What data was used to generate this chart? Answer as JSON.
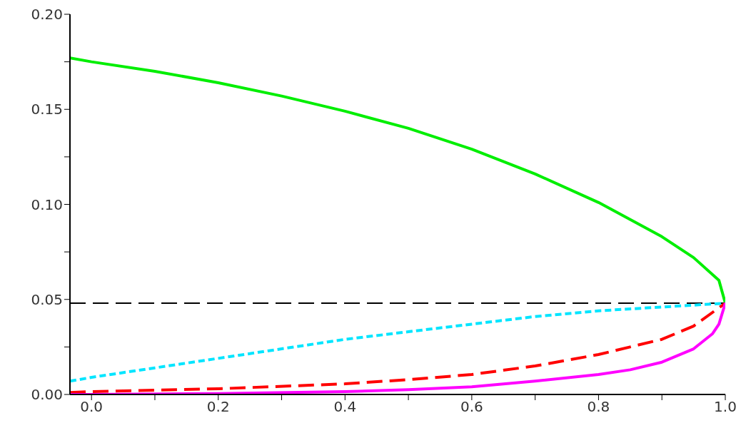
{
  "chart_data": {
    "type": "line",
    "xlim": [
      -0.034,
      1.0
    ],
    "ylim": [
      0,
      0.2
    ],
    "xticks": [
      {
        "value": 0,
        "label": "0.0"
      },
      {
        "value": 0.1,
        "label": null
      },
      {
        "value": 0.2,
        "label": "0.2"
      },
      {
        "value": 0.3,
        "label": null
      },
      {
        "value": 0.4,
        "label": "0.4"
      },
      {
        "value": 0.5,
        "label": null
      },
      {
        "value": 0.6,
        "label": "0.6"
      },
      {
        "value": 0.7,
        "label": null
      },
      {
        "value": 0.8,
        "label": "0.8"
      },
      {
        "value": 0.9,
        "label": null
      },
      {
        "value": 1.0,
        "label": "1.0"
      }
    ],
    "yticks": [
      {
        "value": 0,
        "label": "0.00"
      },
      {
        "value": 0.025,
        "label": null
      },
      {
        "value": 0.05,
        "label": "0.05"
      },
      {
        "value": 0.075,
        "label": null
      },
      {
        "value": 0.1,
        "label": "0.10"
      },
      {
        "value": 0.125,
        "label": null
      },
      {
        "value": 0.15,
        "label": "0.15"
      },
      {
        "value": 0.175,
        "label": null
      },
      {
        "value": 0.2,
        "label": "0.20"
      }
    ],
    "grid": false,
    "legend": false,
    "marker": "none",
    "series": [
      {
        "color": "#00ee00",
        "line_style": "solid",
        "x": [
          -0.034,
          0,
          0.1,
          0.2,
          0.3,
          0.4,
          0.5,
          0.6,
          0.7,
          0.8,
          0.85,
          0.9,
          0.95,
          0.99,
          1.0
        ],
        "values": [
          0.177,
          0.175,
          0.17,
          0.164,
          0.157,
          0.149,
          0.14,
          0.129,
          0.116,
          0.101,
          0.092,
          0.083,
          0.072,
          0.06,
          0.048
        ]
      },
      {
        "color": "#00e5ff",
        "line_style": "dotted",
        "x": [
          -0.034,
          0,
          0.1,
          0.2,
          0.3,
          0.4,
          0.5,
          0.6,
          0.7,
          0.8,
          0.9,
          1.0
        ],
        "values": [
          0.007,
          0.009,
          0.014,
          0.019,
          0.024,
          0.029,
          0.033,
          0.037,
          0.041,
          0.044,
          0.046,
          0.048
        ]
      },
      {
        "color": "#ff0000",
        "line_style": "dashed",
        "x": [
          -0.034,
          0,
          0.2,
          0.4,
          0.5,
          0.6,
          0.7,
          0.8,
          0.9,
          0.95,
          1.0
        ],
        "values": [
          0.001,
          0.0015,
          0.003,
          0.0056,
          0.0078,
          0.0105,
          0.015,
          0.021,
          0.029,
          0.036,
          0.048
        ]
      },
      {
        "color": "#ff00ff",
        "line_style": "solid",
        "x": [
          -0.034,
          0,
          0.2,
          0.4,
          0.5,
          0.6,
          0.7,
          0.8,
          0.85,
          0.9,
          0.95,
          0.98,
          0.99,
          1.0
        ],
        "values": [
          0,
          0,
          0.0005,
          0.0015,
          0.0025,
          0.004,
          0.007,
          0.0105,
          0.013,
          0.017,
          0.024,
          0.032,
          0.037,
          0.048
        ]
      }
    ],
    "ref_lines": [
      {
        "axis": "y",
        "value": 0.048,
        "color": "#000000",
        "line_style": "dashed"
      }
    ]
  }
}
